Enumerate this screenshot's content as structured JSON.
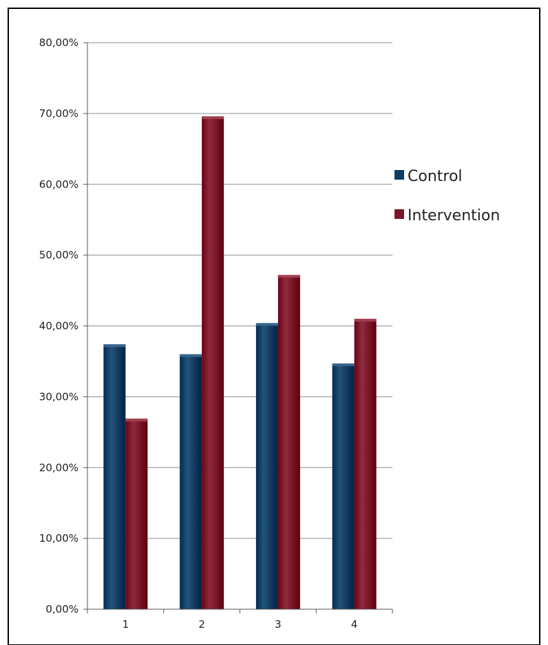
{
  "chart_data": {
    "type": "bar",
    "categories": [
      "1",
      "2",
      "3",
      "4"
    ],
    "series": [
      {
        "name": "Control",
        "color": "#0e3d63",
        "values": [
          0.374,
          0.36,
          0.404,
          0.347
        ]
      },
      {
        "name": "Intervention",
        "color": "#7a1528",
        "values": [
          0.269,
          0.696,
          0.472,
          0.41
        ]
      }
    ],
    "ylim": [
      0,
      0.8
    ],
    "y_ticks": [
      0,
      0.1,
      0.2,
      0.3,
      0.4,
      0.5,
      0.6,
      0.7,
      0.8
    ],
    "y_tick_labels": [
      "0,00%",
      "10,00%",
      "20,00%",
      "30,00%",
      "40,00%",
      "50,00%",
      "60,00%",
      "70,00%",
      "80,00%"
    ],
    "grid": "horizontal major",
    "legend_position": "right",
    "title": "",
    "xlabel": "",
    "ylabel": ""
  }
}
